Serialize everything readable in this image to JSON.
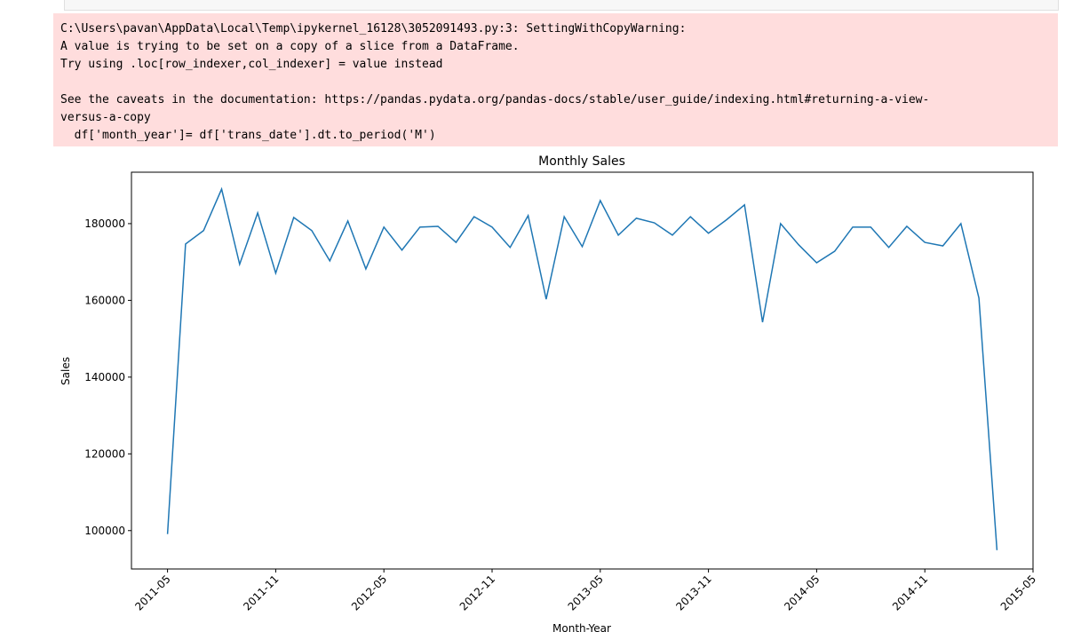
{
  "warning": {
    "lines": [
      "C:\\Users\\pavan\\AppData\\Local\\Temp\\ipykernel_16128\\3052091493.py:3: SettingWithCopyWarning:",
      "A value is trying to be set on a copy of a slice from a DataFrame.",
      "Try using .loc[row_indexer,col_indexer] = value instead",
      "See the caveats in the documentation: https://pandas.pydata.org/pandas-docs/stable/user_guide/indexing.html#returning-a-view-",
      "versus-a-copy",
      "  df['month_year']= df['trans_date'].dt.to_period('M')"
    ]
  },
  "chart_data": {
    "type": "line",
    "title": "Monthly Sales",
    "x_label": "Month-Year",
    "y_label": "Sales",
    "x": [
      "2011-05",
      "2011-06",
      "2011-07",
      "2011-08",
      "2011-09",
      "2011-10",
      "2011-11",
      "2011-12",
      "2012-01",
      "2012-02",
      "2012-03",
      "2012-04",
      "2012-05",
      "2012-06",
      "2012-07",
      "2012-08",
      "2012-09",
      "2012-10",
      "2012-11",
      "2012-12",
      "2013-01",
      "2013-02",
      "2013-03",
      "2013-04",
      "2013-05",
      "2013-06",
      "2013-07",
      "2013-08",
      "2013-09",
      "2013-10",
      "2013-11",
      "2013-12",
      "2014-01",
      "2014-02",
      "2014-03",
      "2014-04",
      "2014-05",
      "2014-06",
      "2014-07",
      "2014-08",
      "2014-09",
      "2014-10",
      "2014-11",
      "2014-12",
      "2015-01",
      "2015-02",
      "2015-03"
    ],
    "series": [
      {
        "name": "Sales",
        "color": "#1f77b4",
        "values": [
          99100,
          174700,
          178200,
          189000,
          169400,
          182800,
          167100,
          181600,
          178200,
          170300,
          180700,
          168200,
          179100,
          173100,
          179100,
          179300,
          175100,
          181800,
          179100,
          173800,
          182100,
          160300,
          181800,
          174000,
          186000,
          177000,
          181400,
          180200,
          177000,
          181800,
          177500,
          181000,
          184900,
          154300,
          180000,
          174500,
          169800,
          172800,
          179100,
          179100,
          173800,
          179300,
          175100,
          174200,
          180000,
          160600,
          94900
        ]
      }
    ],
    "xlim": [
      "2011-03",
      "2015-05"
    ],
    "xticks": [
      "2011-05",
      "2011-11",
      "2012-05",
      "2012-11",
      "2013-05",
      "2013-11",
      "2014-05",
      "2014-11",
      "2015-05"
    ],
    "ylim": [
      90000,
      193400
    ],
    "yticks": [
      100000,
      120000,
      140000,
      160000,
      180000
    ]
  }
}
